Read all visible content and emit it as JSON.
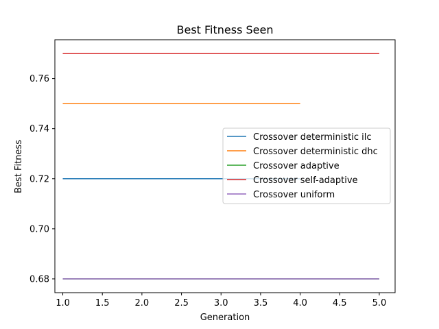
{
  "chart_data": {
    "type": "line",
    "title": "Best Fitness Seen",
    "xlabel": "Generation",
    "ylabel": "Best Fitness",
    "xlim": [
      0.9,
      5.2
    ],
    "ylim": [
      0.6745,
      0.7755
    ],
    "xticks": [
      1.0,
      1.5,
      2.0,
      2.5,
      3.0,
      3.5,
      4.0,
      4.5,
      5.0
    ],
    "xtick_labels": [
      "1.0",
      "1.5",
      "2.0",
      "2.5",
      "3.0",
      "3.5",
      "4.0",
      "4.5",
      "5.0"
    ],
    "yticks": [
      0.68,
      0.7,
      0.72,
      0.74,
      0.76
    ],
    "ytick_labels": [
      "0.68",
      "0.70",
      "0.72",
      "0.74",
      "0.76"
    ],
    "grid": false,
    "legend_position": "center-right",
    "series": [
      {
        "name": "Crossover deterministic ilc",
        "color": "#1f77b4",
        "x": [
          1,
          2,
          3,
          4
        ],
        "y": [
          0.72,
          0.72,
          0.72,
          0.72
        ]
      },
      {
        "name": "Crossover deterministic dhc",
        "color": "#ff7f0e",
        "x": [
          1,
          2,
          3,
          4
        ],
        "y": [
          0.75,
          0.75,
          0.75,
          0.75
        ]
      },
      {
        "name": "Crossover adaptive",
        "color": "#2ca02c",
        "x": [
          1,
          2,
          3,
          4,
          5
        ],
        "y": [
          0.68,
          0.68,
          0.68,
          0.68,
          0.68
        ]
      },
      {
        "name": "Crossover self-adaptive",
        "color": "#d62728",
        "x": [
          1,
          2,
          3,
          4,
          5
        ],
        "y": [
          0.77,
          0.77,
          0.77,
          0.77,
          0.77
        ]
      },
      {
        "name": "Crossover uniform",
        "color": "#9467bd",
        "x": [
          1,
          2,
          3,
          4,
          5
        ],
        "y": [
          0.68,
          0.68,
          0.68,
          0.68,
          0.68
        ]
      }
    ]
  }
}
